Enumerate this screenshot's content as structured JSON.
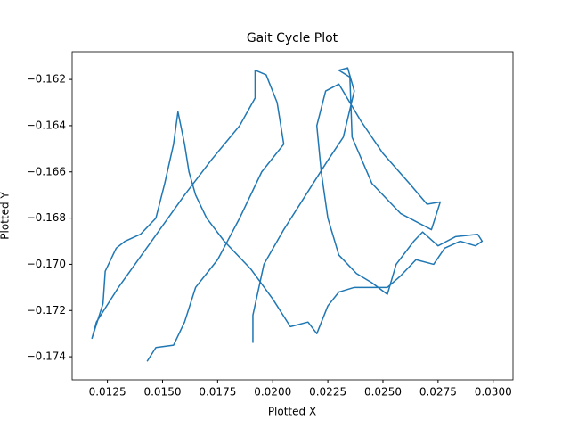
{
  "chart_data": {
    "type": "line",
    "title": "Gait Cycle Plot",
    "xlabel": "Plotted X",
    "ylabel": "Plotted Y",
    "xlim": [
      0.0109,
      0.0309
    ],
    "ylim": [
      -0.175,
      -0.1608
    ],
    "xticks": [
      {
        "value": 0.0125,
        "label": "0.0125"
      },
      {
        "value": 0.015,
        "label": "0.0150"
      },
      {
        "value": 0.0175,
        "label": "0.0175"
      },
      {
        "value": 0.02,
        "label": "0.0200"
      },
      {
        "value": 0.0225,
        "label": "0.0225"
      },
      {
        "value": 0.025,
        "label": "0.0250"
      },
      {
        "value": 0.0275,
        "label": "0.0275"
      },
      {
        "value": 0.03,
        "label": "0.0300"
      }
    ],
    "yticks": [
      {
        "value": -0.162,
        "label": "−0.162"
      },
      {
        "value": -0.164,
        "label": "−0.164"
      },
      {
        "value": -0.166,
        "label": "−0.166"
      },
      {
        "value": -0.168,
        "label": "−0.168"
      },
      {
        "value": -0.17,
        "label": "−0.170"
      },
      {
        "value": -0.172,
        "label": "−0.172"
      },
      {
        "value": -0.174,
        "label": "−0.174"
      }
    ],
    "series": [
      {
        "color": "#1f77b4",
        "x": [
          0.0191,
          0.0191,
          0.0196,
          0.0205,
          0.0215,
          0.0225,
          0.0232,
          0.0237,
          0.0234,
          0.023,
          0.0235,
          0.0236,
          0.0245,
          0.0258,
          0.0272,
          0.0276,
          0.027,
          0.0262,
          0.025,
          0.024,
          0.023,
          0.0224,
          0.022,
          0.0222,
          0.0225,
          0.023,
          0.0238,
          0.0245,
          0.0252,
          0.0256,
          0.0264,
          0.0268,
          0.0275,
          0.0283,
          0.0293,
          0.0295,
          0.0292,
          0.0285,
          0.0278,
          0.0273,
          0.0265,
          0.0258,
          0.0252,
          0.0245,
          0.0237,
          0.023,
          0.0225,
          0.022,
          0.0216,
          0.0208,
          0.02,
          0.019,
          0.0178,
          0.017,
          0.0165,
          0.0162,
          0.016,
          0.0157,
          0.0155,
          0.0151,
          0.0147,
          0.014,
          0.0133,
          0.0129,
          0.0124,
          0.0123,
          0.0118,
          0.012,
          0.013,
          0.0145,
          0.016,
          0.0172,
          0.0185,
          0.0192,
          0.0192,
          0.0197,
          0.0202,
          0.0205,
          0.0195,
          0.0185,
          0.0175,
          0.0165,
          0.016,
          0.0155,
          0.0147,
          0.0143
        ],
        "y": [
          -0.1734,
          -0.1722,
          -0.17,
          -0.1685,
          -0.167,
          -0.1655,
          -0.1645,
          -0.1625,
          -0.1615,
          -0.1616,
          -0.1619,
          -0.1645,
          -0.1665,
          -0.1678,
          -0.1685,
          -0.1673,
          -0.1674,
          -0.1665,
          -0.1652,
          -0.1638,
          -0.1622,
          -0.1625,
          -0.164,
          -0.166,
          -0.168,
          -0.1696,
          -0.1704,
          -0.1708,
          -0.1713,
          -0.17,
          -0.169,
          -0.1686,
          -0.1692,
          -0.1688,
          -0.1687,
          -0.169,
          -0.1692,
          -0.169,
          -0.1693,
          -0.17,
          -0.1698,
          -0.1705,
          -0.171,
          -0.171,
          -0.171,
          -0.1712,
          -0.1718,
          -0.173,
          -0.1725,
          -0.1727,
          -0.1715,
          -0.1702,
          -0.169,
          -0.168,
          -0.167,
          -0.166,
          -0.1648,
          -0.1634,
          -0.1648,
          -0.1665,
          -0.168,
          -0.1687,
          -0.169,
          -0.1693,
          -0.1703,
          -0.1717,
          -0.1732,
          -0.1725,
          -0.171,
          -0.169,
          -0.167,
          -0.1655,
          -0.164,
          -0.1628,
          -0.1616,
          -0.1618,
          -0.163,
          -0.1648,
          -0.166,
          -0.168,
          -0.1698,
          -0.171,
          -0.1725,
          -0.1735,
          -0.1736,
          -0.1742
        ]
      }
    ]
  }
}
